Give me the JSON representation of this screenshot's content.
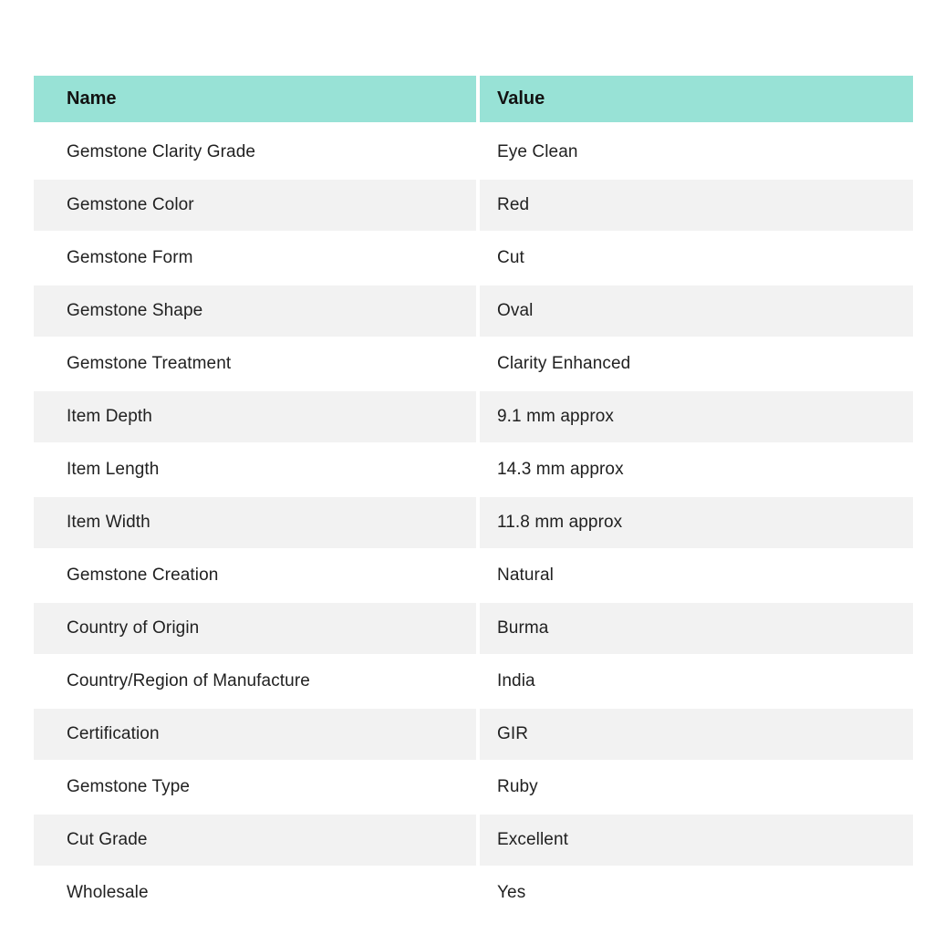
{
  "table": {
    "columns": {
      "name": "Name",
      "value": "Value"
    },
    "rows": [
      {
        "name": "Gemstone Clarity Grade",
        "value": "Eye Clean"
      },
      {
        "name": "Gemstone Color",
        "value": "Red"
      },
      {
        "name": "Gemstone Form",
        "value": "Cut"
      },
      {
        "name": "Gemstone Shape",
        "value": "Oval"
      },
      {
        "name": "Gemstone Treatment",
        "value": "Clarity Enhanced"
      },
      {
        "name": "Item Depth",
        "value": "9.1 mm approx"
      },
      {
        "name": "Item Length",
        "value": "14.3 mm approx"
      },
      {
        "name": "Item Width",
        "value": "11.8 mm approx"
      },
      {
        "name": "Gemstone Creation",
        "value": "Natural"
      },
      {
        "name": "Country of Origin",
        "value": "Burma"
      },
      {
        "name": "Country/Region of Manufacture",
        "value": "India"
      },
      {
        "name": "Certification",
        "value": "GIR"
      },
      {
        "name": "Gemstone Type",
        "value": "Ruby"
      },
      {
        "name": "Cut Grade",
        "value": "Excellent"
      },
      {
        "name": "Wholesale",
        "value": "Yes"
      }
    ],
    "colors": {
      "header_bg": "#98e2d6",
      "stripe_bg": "#f2f2f2",
      "text": "#212121"
    }
  }
}
